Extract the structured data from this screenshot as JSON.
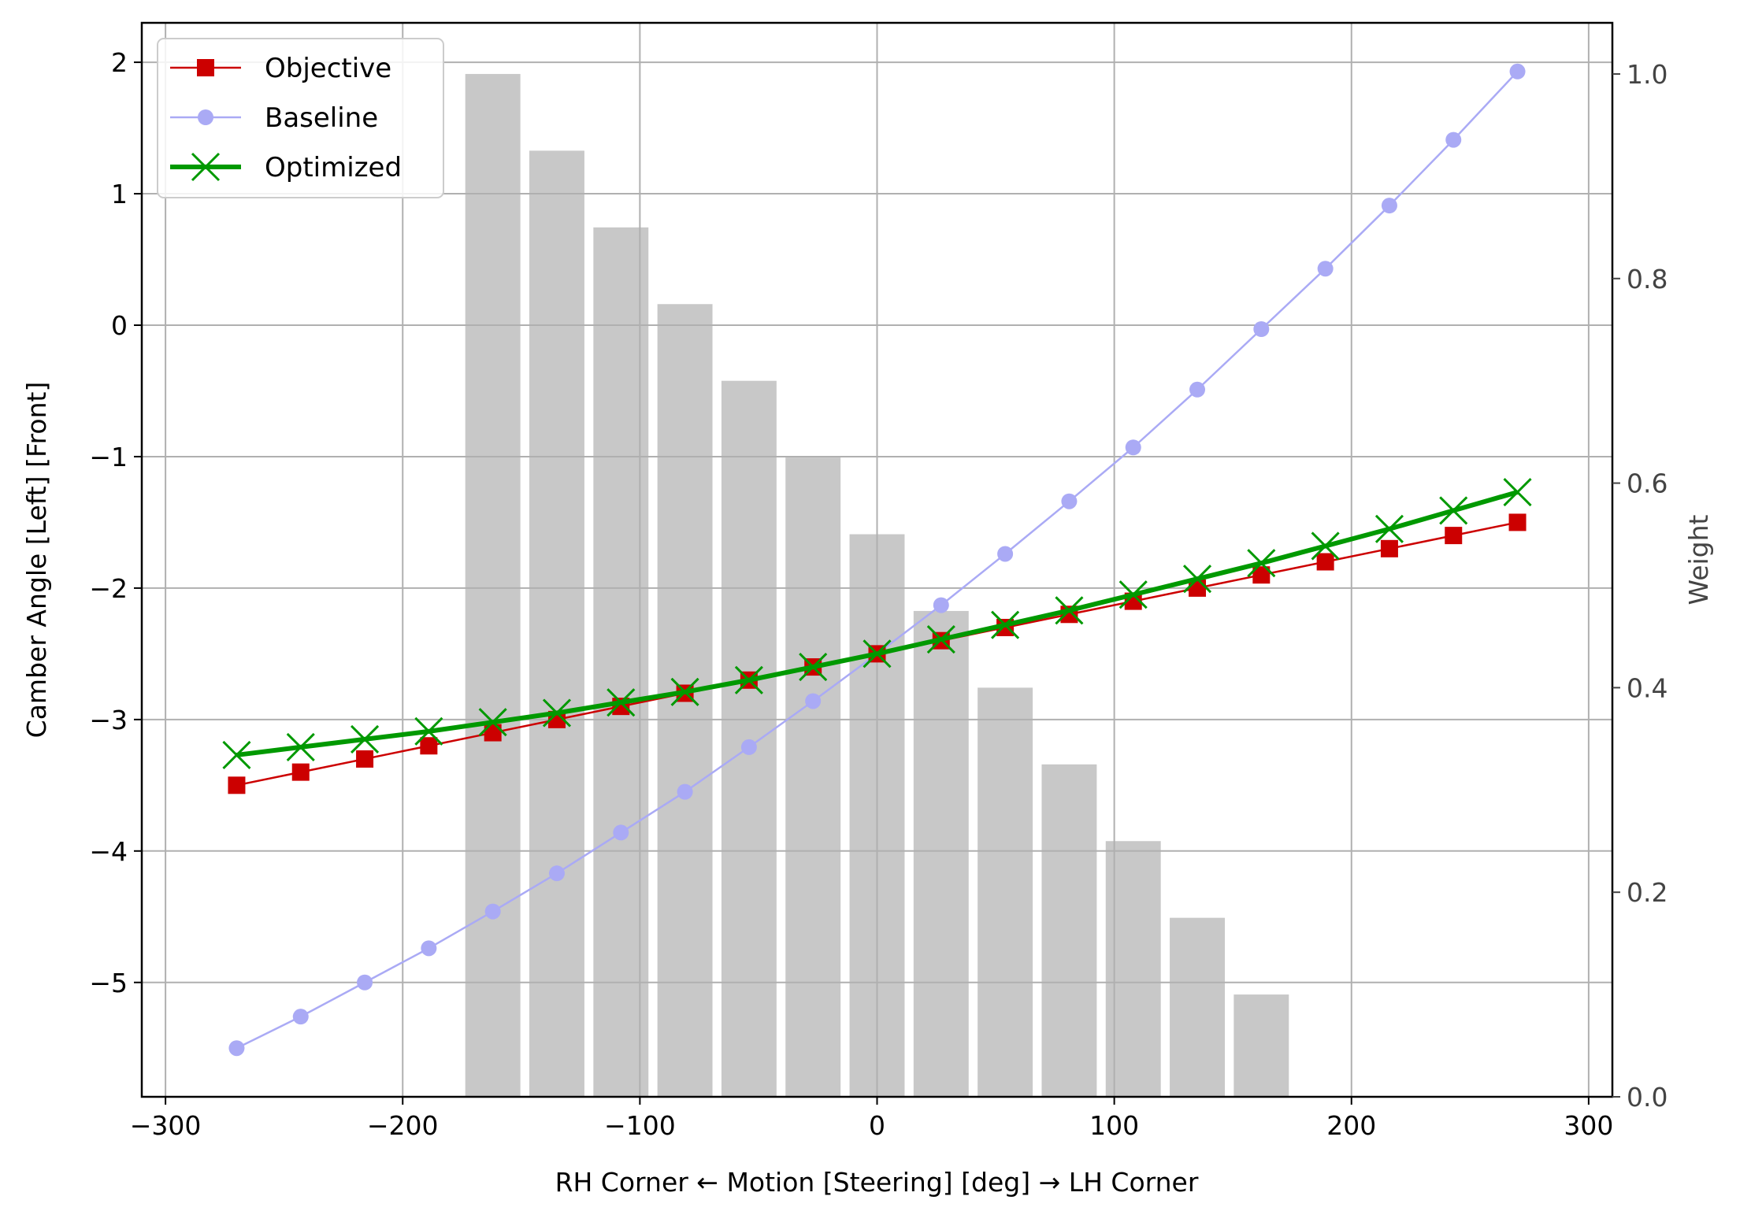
{
  "chart_data": {
    "type": "line",
    "xlabel": "RH Corner ← Motion [Steering] [deg] → LH Corner",
    "ylabel": "Camber Angle [Left] [Front]",
    "y2label": "Weight",
    "xlim": [
      -310,
      310
    ],
    "ylim": [
      -5.87,
      2.3
    ],
    "y2lim": [
      0.0,
      1.05
    ],
    "x_ticks": [
      -300,
      -200,
      -100,
      0,
      100,
      200,
      300
    ],
    "x_tick_labels": [
      "−300",
      "−200",
      "−100",
      "0",
      "100",
      "200",
      "300"
    ],
    "y_ticks": [
      -5,
      -4,
      -3,
      -2,
      -1,
      0,
      1,
      2
    ],
    "y_tick_labels": [
      "−5",
      "−4",
      "−3",
      "−2",
      "−1",
      "0",
      "1",
      "2"
    ],
    "y2_ticks": [
      0.0,
      0.2,
      0.4,
      0.6,
      0.8,
      1.0
    ],
    "y2_tick_labels": [
      "0.0",
      "0.2",
      "0.4",
      "0.6",
      "0.8",
      "1.0"
    ],
    "grid": true,
    "legend_position": "top-left",
    "x": [
      -270,
      -243,
      -216,
      -189,
      -162,
      -135,
      -108,
      -81,
      -54,
      -27,
      0,
      27,
      54,
      81,
      108,
      135,
      162,
      189,
      216,
      243,
      270
    ],
    "series": [
      {
        "name": "Objective",
        "color": "#cc0000",
        "marker": "square",
        "values": [
          -3.5,
          -3.4,
          -3.3,
          -3.2,
          -3.1,
          -3.0,
          -2.9,
          -2.8,
          -2.7,
          -2.6,
          -2.5,
          -2.4,
          -2.3,
          -2.2,
          -2.1,
          -2.0,
          -1.9,
          -1.8,
          -1.7,
          -1.6,
          -1.5
        ]
      },
      {
        "name": "Baseline",
        "color": "#aaaaf5",
        "marker": "circle",
        "values": [
          -5.5,
          -5.26,
          -5.0,
          -4.74,
          -4.46,
          -4.17,
          -3.86,
          -3.55,
          -3.21,
          -2.86,
          -2.5,
          -2.13,
          -1.74,
          -1.34,
          -0.93,
          -0.49,
          -0.03,
          0.43,
          0.91,
          1.41,
          1.93
        ]
      },
      {
        "name": "Optimized",
        "color": "#009900",
        "marker": "x",
        "values": [
          -3.27,
          -3.21,
          -3.15,
          -3.09,
          -3.02,
          -2.95,
          -2.87,
          -2.79,
          -2.7,
          -2.6,
          -2.5,
          -2.39,
          -2.28,
          -2.17,
          -2.05,
          -1.93,
          -1.81,
          -1.68,
          -1.55,
          -1.41,
          -1.27
        ]
      }
    ],
    "weights": {
      "axis": "right",
      "color": "#c8c8c8",
      "x": [
        -162,
        -135,
        -108,
        -81,
        -54,
        -27,
        0,
        27,
        54,
        81,
        108,
        135,
        162
      ],
      "values": [
        1.0,
        0.925,
        0.85,
        0.775,
        0.7,
        0.625,
        0.55,
        0.475,
        0.4,
        0.325,
        0.25,
        0.175,
        0.1
      ]
    }
  }
}
